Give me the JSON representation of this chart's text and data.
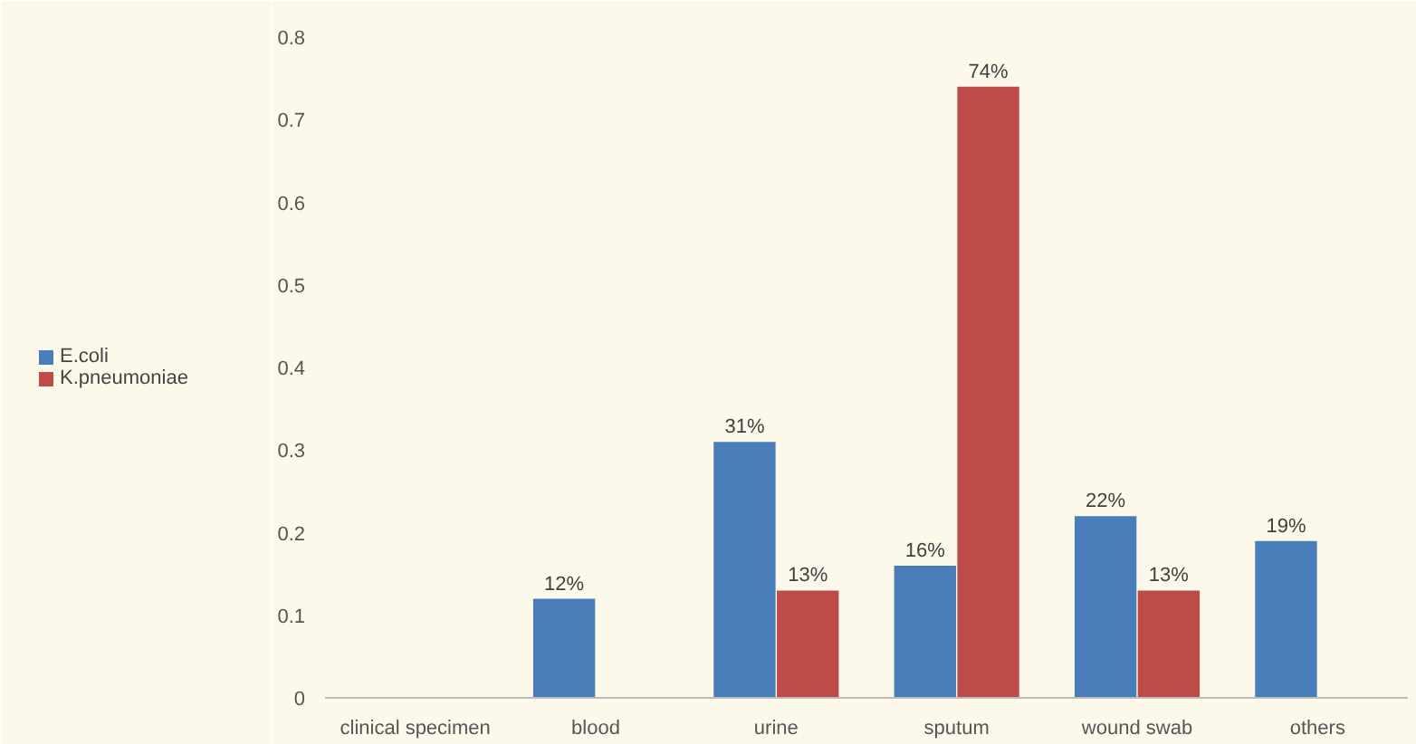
{
  "chart_data": {
    "type": "bar",
    "categories": [
      "clinical specimen",
      "blood",
      "urine",
      "sputum",
      "wound swab",
      "others"
    ],
    "series": [
      {
        "name": "E.coli",
        "color": "#4a7ebb",
        "values": [
          null,
          0.12,
          0.31,
          0.16,
          0.22,
          0.19
        ],
        "value_labels": [
          null,
          "12%",
          "31%",
          "16%",
          "22%",
          "19%"
        ]
      },
      {
        "name": "K.pneumoniae",
        "color": "#be4b48",
        "values": [
          null,
          null,
          0.13,
          0.74,
          0.13,
          null
        ],
        "value_labels": [
          null,
          null,
          "13%",
          "74%",
          "13%",
          null
        ]
      }
    ],
    "ylim": [
      0,
      0.8
    ],
    "yticks": [
      0,
      0.1,
      0.2,
      0.3,
      0.4,
      0.5,
      0.6,
      0.7,
      0.8
    ],
    "grid": false,
    "legend": "left"
  }
}
